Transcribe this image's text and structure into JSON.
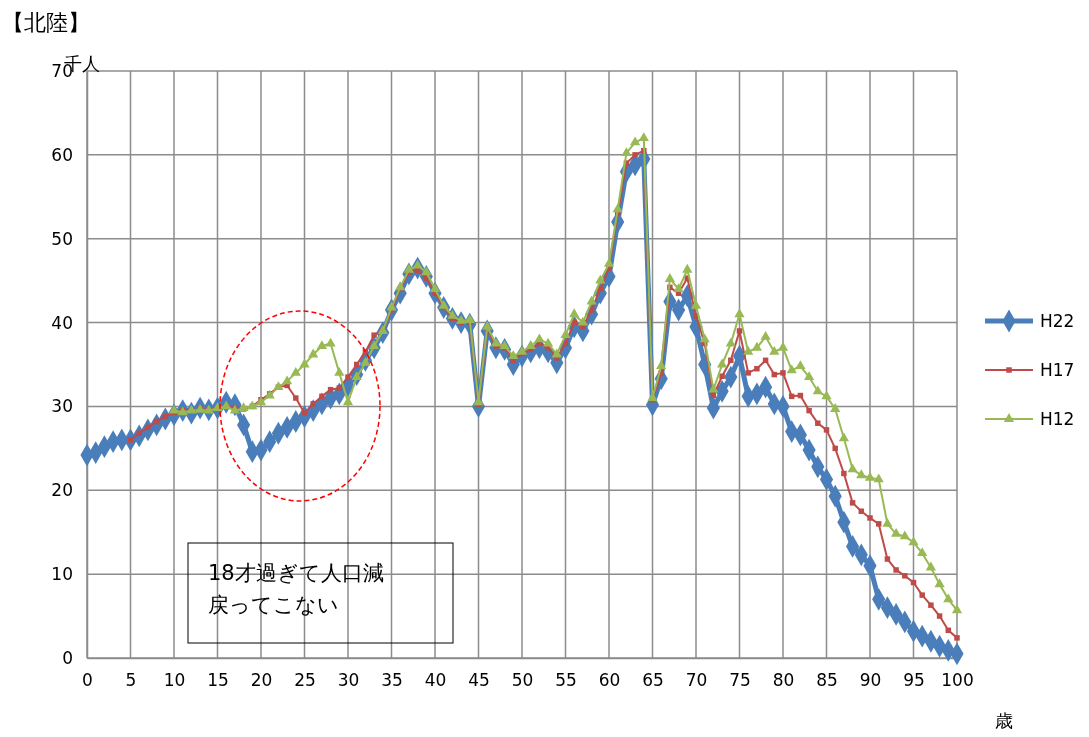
{
  "chart_data": {
    "type": "line",
    "title": "【北陸】",
    "ylabel": "千人",
    "xlabel": "歳",
    "x": [
      0,
      1,
      2,
      3,
      4,
      5,
      6,
      7,
      8,
      9,
      10,
      11,
      12,
      13,
      14,
      15,
      16,
      17,
      18,
      19,
      20,
      21,
      22,
      23,
      24,
      25,
      26,
      27,
      28,
      29,
      30,
      31,
      32,
      33,
      34,
      35,
      36,
      37,
      38,
      39,
      40,
      41,
      42,
      43,
      44,
      45,
      46,
      47,
      48,
      49,
      50,
      51,
      52,
      53,
      54,
      55,
      56,
      57,
      58,
      59,
      60,
      61,
      62,
      63,
      64,
      65,
      66,
      67,
      68,
      69,
      70,
      71,
      72,
      73,
      74,
      75,
      76,
      77,
      78,
      79,
      80,
      81,
      82,
      83,
      84,
      85,
      86,
      87,
      88,
      89,
      90,
      91,
      92,
      93,
      94,
      95,
      96,
      97,
      98,
      99,
      100
    ],
    "xlim": [
      0,
      100
    ],
    "xticks": [
      0,
      5,
      10,
      15,
      20,
      25,
      30,
      35,
      40,
      45,
      50,
      55,
      60,
      65,
      70,
      75,
      80,
      85,
      90,
      95,
      100
    ],
    "ylim": [
      0,
      70
    ],
    "yticks": [
      0,
      10,
      20,
      30,
      40,
      50,
      60,
      70
    ],
    "grid": true,
    "legend": "right",
    "series": [
      {
        "name": "H22",
        "color": "#4a7ebb",
        "marker": "diamond",
        "values": [
          24.2,
          24.5,
          25.2,
          25.8,
          26.0,
          26.0,
          26.5,
          27.2,
          27.8,
          28.5,
          29.0,
          29.5,
          29.2,
          29.8,
          29.6,
          29.8,
          30.5,
          30.2,
          27.8,
          24.6,
          24.8,
          25.8,
          26.8,
          27.5,
          28.2,
          28.8,
          29.5,
          30.3,
          31.0,
          31.5,
          32.5,
          33.8,
          35.5,
          37.0,
          38.8,
          41.5,
          43.5,
          45.8,
          46.5,
          45.5,
          43.5,
          41.8,
          40.5,
          40.0,
          39.8,
          30.0,
          39.0,
          37.0,
          36.8,
          35.0,
          36.0,
          36.5,
          37.0,
          36.5,
          35.2,
          37.0,
          39.5,
          39.0,
          41.0,
          43.5,
          45.5,
          52.0,
          58.0,
          58.8,
          59.5,
          30.2,
          33.3,
          42.5,
          41.5,
          43.2,
          39.5,
          35.0,
          29.8,
          31.8,
          33.5,
          36.0,
          31.2,
          31.5,
          32.3,
          30.3,
          30.0,
          27.0,
          26.6,
          24.8,
          22.8,
          21.3,
          19.3,
          16.2,
          13.3,
          12.3,
          11.0,
          7.0,
          6.0,
          5.2,
          4.3,
          3.2,
          2.6,
          2.0,
          1.4,
          0.9,
          0.5
        ]
      },
      {
        "name": "H17",
        "color": "#be4b48",
        "marker": "square",
        "values": [
          null,
          null,
          null,
          null,
          null,
          26.0,
          26.8,
          27.5,
          28.2,
          28.8,
          29.3,
          29.5,
          29.5,
          29.7,
          29.6,
          29.8,
          30.0,
          29.8,
          29.7,
          30.0,
          30.8,
          31.5,
          32.3,
          32.5,
          31.0,
          29.2,
          30.3,
          31.2,
          32.0,
          32.2,
          33.5,
          35.0,
          36.5,
          38.5,
          39.0,
          41.5,
          44.0,
          46.0,
          46.2,
          45.3,
          43.5,
          41.8,
          40.5,
          40.0,
          40.0,
          30.2,
          39.2,
          37.2,
          37.0,
          35.5,
          36.3,
          36.8,
          37.5,
          37.0,
          35.8,
          37.5,
          40.0,
          39.5,
          41.5,
          44.0,
          46.5,
          53.0,
          59.0,
          60.0,
          60.5,
          30.8,
          34.0,
          44.2,
          43.5,
          45.3,
          40.8,
          37.5,
          31.3,
          33.6,
          35.5,
          39.0,
          34.0,
          34.5,
          35.5,
          33.8,
          34.0,
          31.2,
          31.3,
          29.5,
          28.0,
          27.2,
          25.0,
          22.0,
          18.5,
          17.5,
          16.7,
          16.0,
          11.8,
          10.5,
          9.8,
          9.0,
          7.5,
          6.3,
          5.0,
          3.3,
          2.4
        ]
      },
      {
        "name": "H12",
        "color": "#98b954",
        "marker": "triangle",
        "values": [
          null,
          null,
          null,
          null,
          null,
          null,
          null,
          null,
          null,
          null,
          29.5,
          29.3,
          29.5,
          29.6,
          29.5,
          29.8,
          30.0,
          29.5,
          29.8,
          30.0,
          30.5,
          31.3,
          32.3,
          33.0,
          34.0,
          35.0,
          36.2,
          37.2,
          37.5,
          34.0,
          30.5,
          33.5,
          35.2,
          37.2,
          39.0,
          41.8,
          44.2,
          46.3,
          46.8,
          46.0,
          44.0,
          42.0,
          40.8,
          40.2,
          40.3,
          30.5,
          39.5,
          37.5,
          37.2,
          36.0,
          36.5,
          37.2,
          38.0,
          37.5,
          36.2,
          38.5,
          41.0,
          40.0,
          42.5,
          45.0,
          47.0,
          53.5,
          60.2,
          61.5,
          62.0,
          31.0,
          34.8,
          45.2,
          44.0,
          46.3,
          42.0,
          38.0,
          32.0,
          35.0,
          37.5,
          41.0,
          36.5,
          37.0,
          38.3,
          36.5,
          37.0,
          34.3,
          34.8,
          33.5,
          31.8,
          31.2,
          29.7,
          26.2,
          22.5,
          21.8,
          21.5,
          21.3,
          16.0,
          14.8,
          14.5,
          13.8,
          12.5,
          10.8,
          8.8,
          7.0,
          5.7
        ]
      }
    ],
    "annotations": [
      "18才過ぎて人口減",
      "戻ってこない"
    ]
  }
}
